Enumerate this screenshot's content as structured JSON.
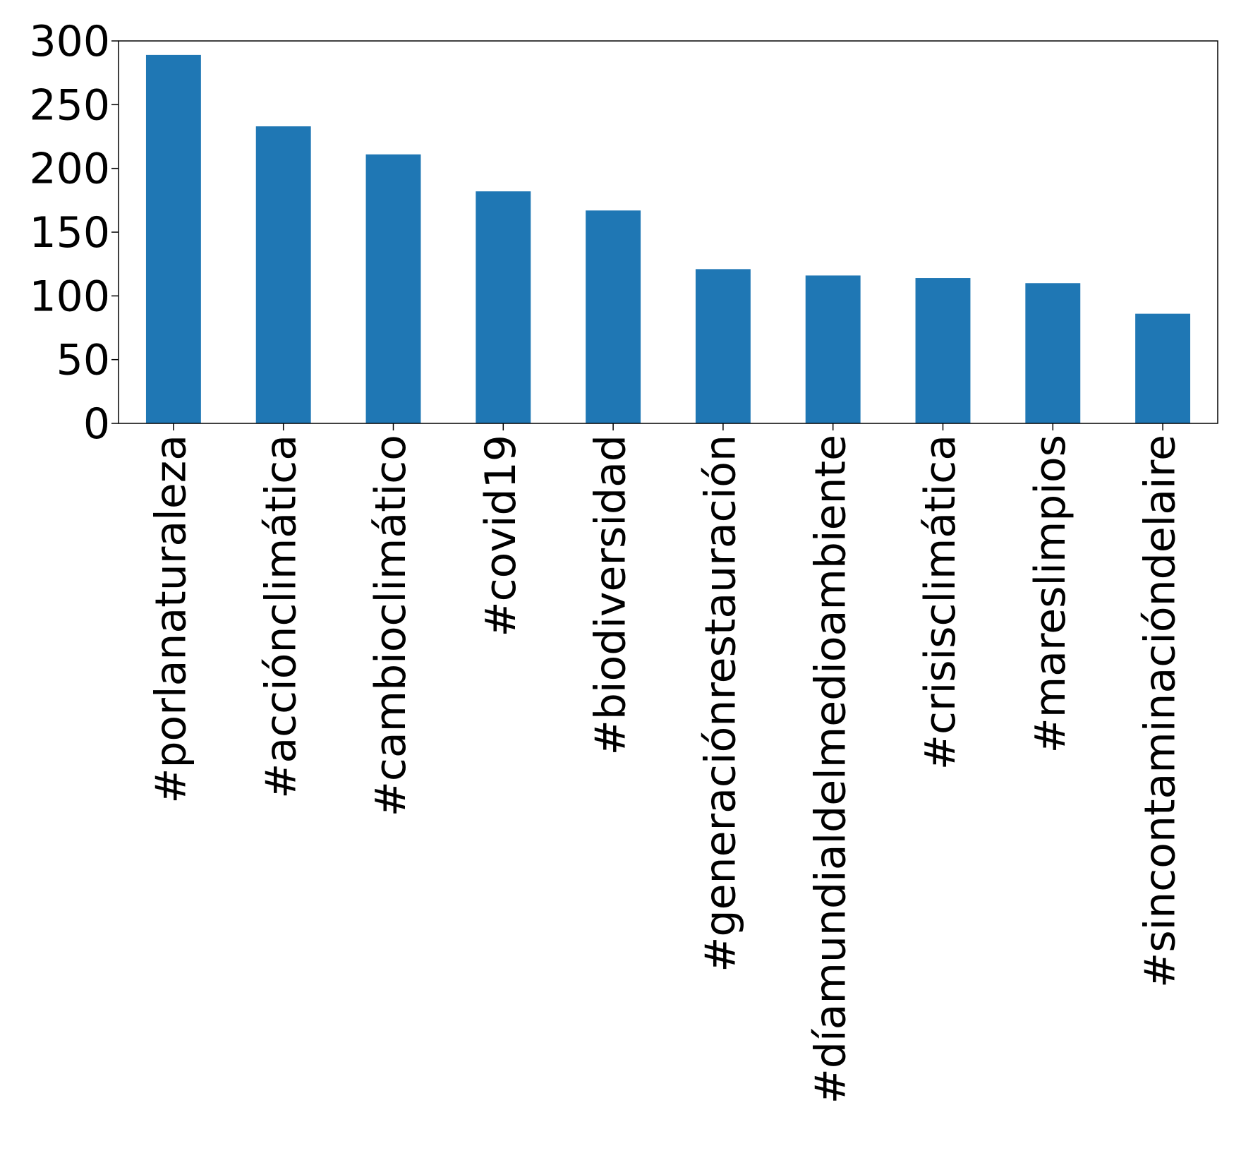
{
  "chart_data": {
    "type": "bar",
    "title": "",
    "xlabel": "",
    "ylabel": "",
    "categories": [
      "#porlanaturaleza",
      "#acciónclimática",
      "#cambioclimático",
      "#covid19",
      "#biodiversidad",
      "#generaciónrestauración",
      "#díamundialdelmedioambiente",
      "#crisisclimática",
      "#mareslimpios",
      "#sincontaminacióndelaire"
    ],
    "values": [
      289,
      233,
      211,
      182,
      167,
      121,
      116,
      114,
      110,
      86
    ],
    "ylim": [
      0,
      300
    ],
    "yticks": [
      0,
      50,
      100,
      150,
      200,
      250,
      300
    ],
    "bar_color": "#1f77b4",
    "grid": false,
    "legend": "none"
  }
}
